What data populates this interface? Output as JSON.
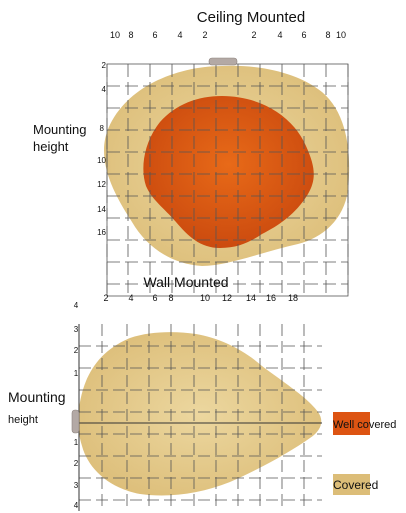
{
  "ceiling": {
    "title": "Ceiling Mounted",
    "top_ticks": [
      "10",
      "8",
      "6",
      "4",
      "2",
      "2",
      "4",
      "6",
      "8",
      "10"
    ],
    "left_ticks": [
      "2",
      "4",
      "8",
      "10",
      "12",
      "14",
      "16"
    ],
    "mounting_label_line1": "Mounting",
    "mounting_label_line2": "height"
  },
  "wall": {
    "title": "Wall Mounted",
    "top_ticks": [
      "2",
      "4",
      "6",
      "8",
      "10",
      "12",
      "14",
      "16",
      "18"
    ],
    "left_ticks": [
      "4",
      "3",
      "2",
      "1",
      "1",
      "2",
      "3",
      "4"
    ],
    "mounting_label_line1": "Mounting",
    "mounting_label_line2": "height"
  },
  "legend": {
    "well_covered": "Well covered",
    "covered": "Covered"
  },
  "colors": {
    "covered": "#e5c98a",
    "well_covered": "#dd5412",
    "grid": "#555555",
    "sensor": "#b3a9a5"
  }
}
